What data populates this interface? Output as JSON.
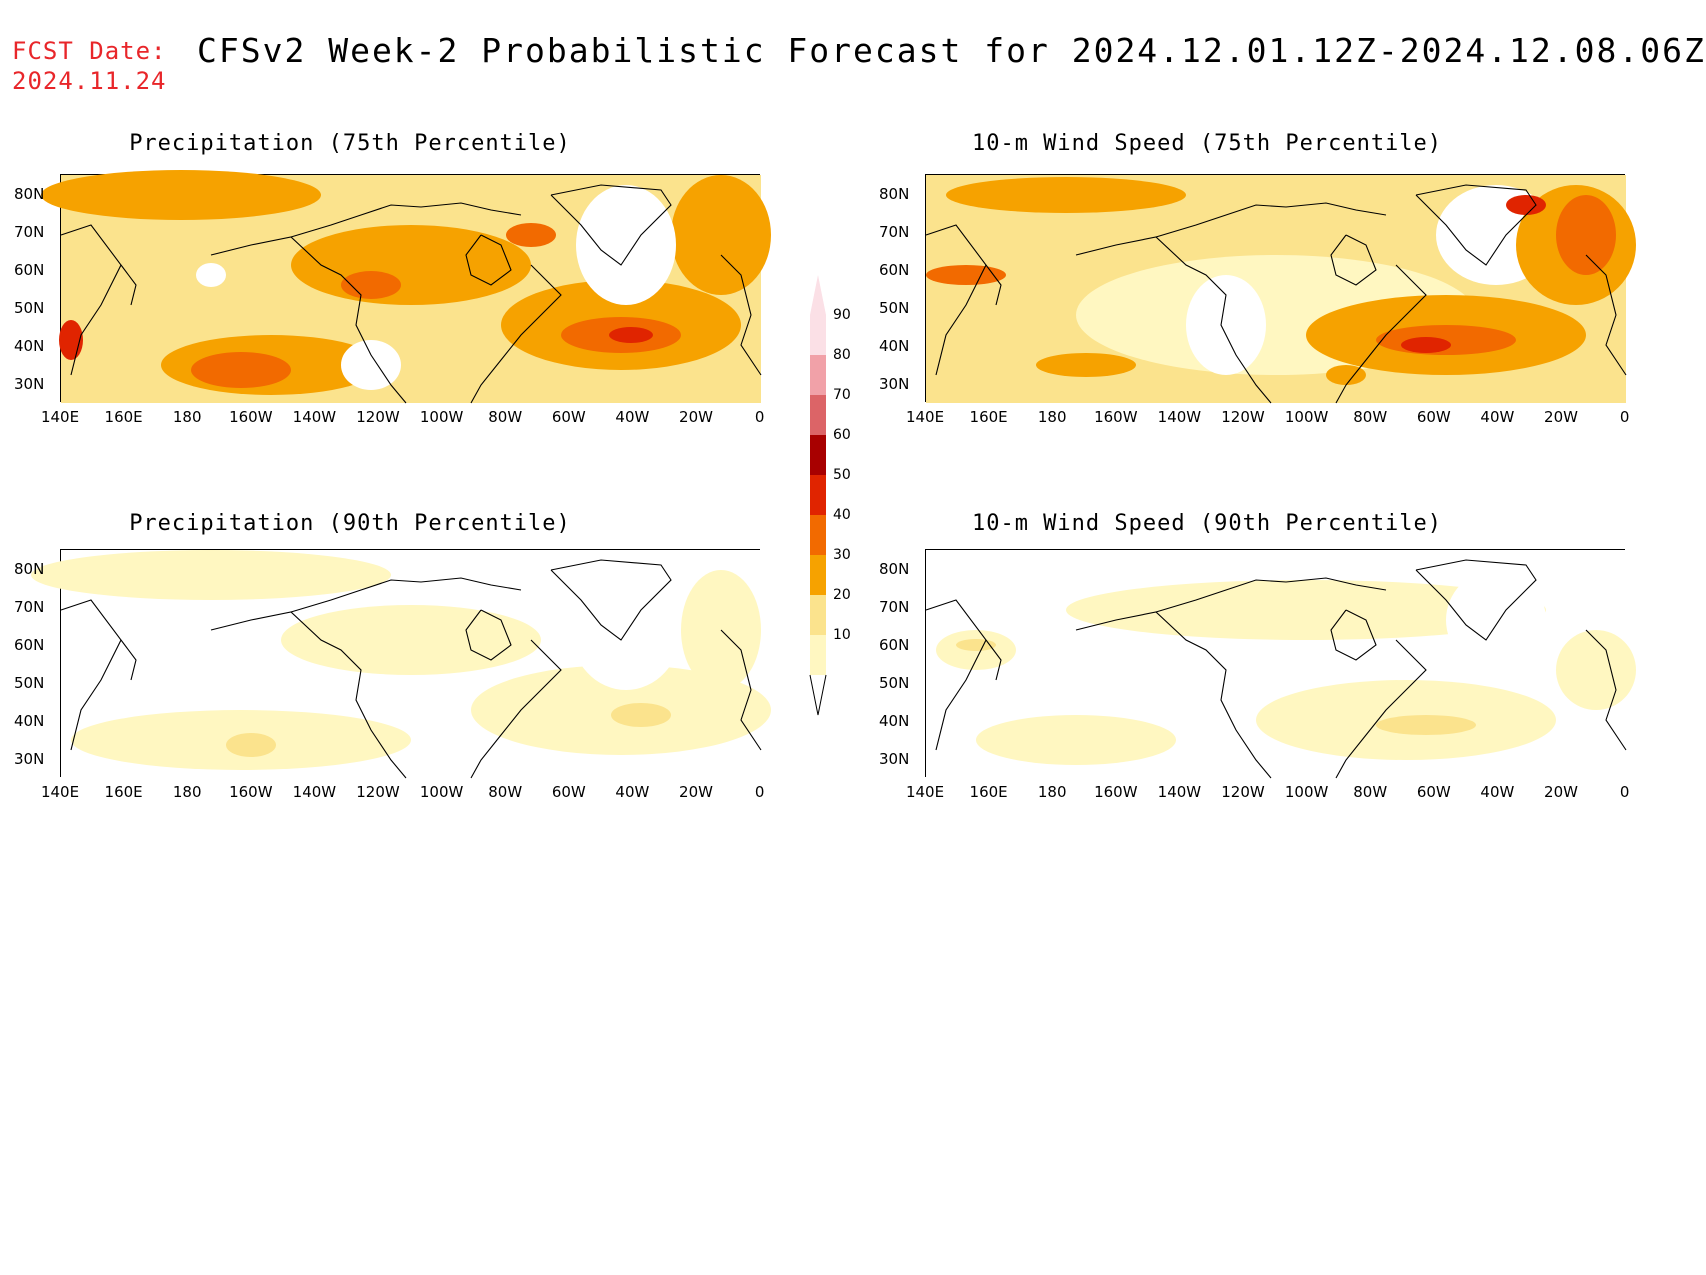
{
  "header": {
    "fcst_label": "FCST Date:",
    "fcst_date": "2024.11.24",
    "title": "CFSv2 Week-2 Probabilistic Forecast for 2024.12.01.12Z-2024.12.08.06Z"
  },
  "panels": [
    {
      "title": "Precipitation (75th Percentile)"
    },
    {
      "title": "10-m Wind Speed (75th Percentile)"
    },
    {
      "title": "Precipitation (90th Percentile)"
    },
    {
      "title": "10-m Wind Speed (90th Percentile)"
    }
  ],
  "axes": {
    "lat_labels": [
      "80N",
      "70N",
      "60N",
      "50N",
      "40N",
      "30N"
    ],
    "lon_labels": [
      "140E",
      "160E",
      "180",
      "160W",
      "140W",
      "120W",
      "100W",
      "80W",
      "60W",
      "40W",
      "20W",
      "0"
    ]
  },
  "colorbar": {
    "labels": [
      "90",
      "80",
      "70",
      "60",
      "50",
      "40",
      "30",
      "20",
      "10"
    ],
    "colors": [
      "#fbe0e6",
      "#f1a1a8",
      "#dc6467",
      "#a80000",
      "#e02400",
      "#f26a00",
      "#f6a200",
      "#fbe38d",
      "#fff7c1"
    ]
  }
}
